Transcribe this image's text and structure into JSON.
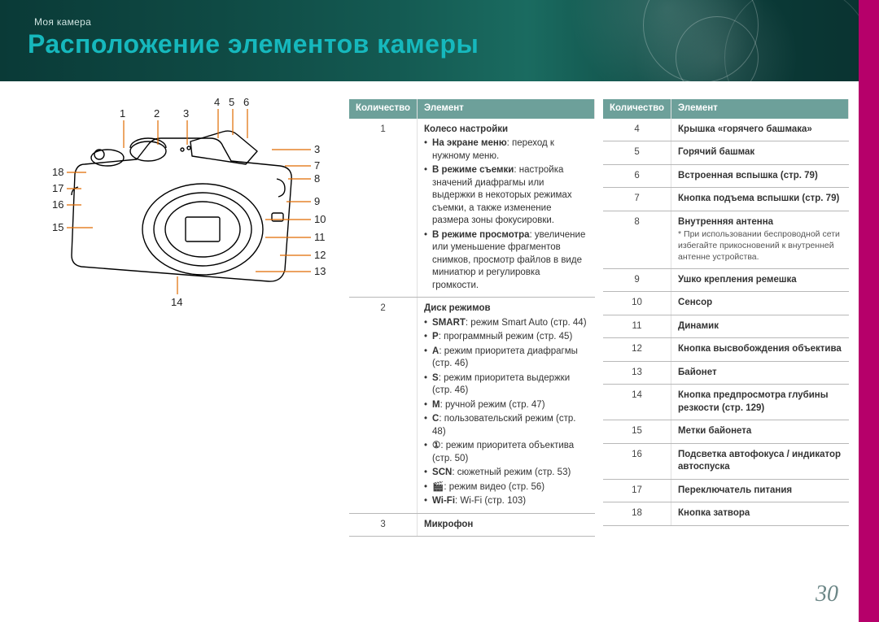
{
  "meta": {
    "breadcrumb": "Моя камера",
    "title": "Расположение элементов камеры",
    "page_number": "30",
    "accent_color": "#16b8bd",
    "header_bg_from": "#0a3a37",
    "header_bg_to": "#146055",
    "sidebar_color": "#b6006a"
  },
  "diagram": {
    "callouts_top": {
      "n4": "4",
      "n5": "5",
      "n6": "6"
    },
    "callouts_upper": {
      "n1": "1",
      "n2": "2",
      "n3": "3"
    },
    "callouts_right": {
      "r3": "3",
      "r7": "7",
      "r8": "8",
      "r9": "9",
      "r10": "10",
      "r11": "11",
      "r12": "12",
      "r13": "13"
    },
    "callouts_left": {
      "l18": "18",
      "l17": "17",
      "l16": "16",
      "l15": "15"
    },
    "callouts_bottom": {
      "b14": "14"
    }
  },
  "table_headers": {
    "qty": "Количество",
    "elem": "Элемент"
  },
  "table_left": [
    {
      "num": "1",
      "title": "Колесо настройки",
      "items": [
        {
          "sub": "На экране меню",
          "text": ": переход к нужному меню."
        },
        {
          "sub": "В режиме съемки",
          "text": ": настройка значений диафрагмы или выдержки в некоторых режимах съемки, а также изменение размера зоны фокусировки."
        },
        {
          "sub": "В режиме просмотра",
          "text": ": увеличение или уменьшение фрагментов снимков, просмотр файлов в виде миниатюр и регулировка громкости."
        }
      ]
    },
    {
      "num": "2",
      "title": "Диск режимов",
      "items": [
        {
          "sub": "SMART",
          "text": ": режим Smart Auto (стр. 44)"
        },
        {
          "sub": "P",
          "text": ": программный режим (стр. 45)"
        },
        {
          "sub": "A",
          "text": ": режим приоритета диафрагмы (стр. 46)"
        },
        {
          "sub": "S",
          "text": ": режим приоритета выдержки (стр. 46)"
        },
        {
          "sub": "M",
          "text": ": ручной режим (стр. 47)"
        },
        {
          "sub": "C",
          "text": ": пользовательский режим (стр. 48)"
        },
        {
          "sub": "①",
          "text": ": режим приоритета объектива (стр. 50)"
        },
        {
          "sub": "SCN",
          "text": ": сюжетный режим (стр. 53)"
        },
        {
          "sub": "🎬",
          "text": ": режим видео (стр. 56)"
        },
        {
          "sub": "Wi-Fi",
          "text": ": Wi-Fi (стр. 103)"
        }
      ]
    },
    {
      "num": "3",
      "title": "Микрофон"
    }
  ],
  "table_right": [
    {
      "num": "4",
      "title": "Крышка «горячего башмака»"
    },
    {
      "num": "5",
      "title": "Горячий башмак"
    },
    {
      "num": "6",
      "title": "Встроенная вспышка (стр. 79)"
    },
    {
      "num": "7",
      "title": "Кнопка подъема вспышки (стр. 79)"
    },
    {
      "num": "8",
      "title": "Внутренняя антенна",
      "note": "* При использовании беспроводной сети избегайте прикосновений к внутренней антенне устройства."
    },
    {
      "num": "9",
      "title": "Ушко крепления ремешка"
    },
    {
      "num": "10",
      "title": "Сенсор"
    },
    {
      "num": "11",
      "title": "Динамик"
    },
    {
      "num": "12",
      "title": "Кнопка высвобождения объектива"
    },
    {
      "num": "13",
      "title": "Байонет"
    },
    {
      "num": "14",
      "title": "Кнопка предпросмотра глубины резкости (стр. 129)"
    },
    {
      "num": "15",
      "title": "Метки байонета"
    },
    {
      "num": "16",
      "title": "Подсветка автофокуса / индикатор автоспуска"
    },
    {
      "num": "17",
      "title": "Переключатель питания"
    },
    {
      "num": "18",
      "title": "Кнопка затвора"
    }
  ]
}
